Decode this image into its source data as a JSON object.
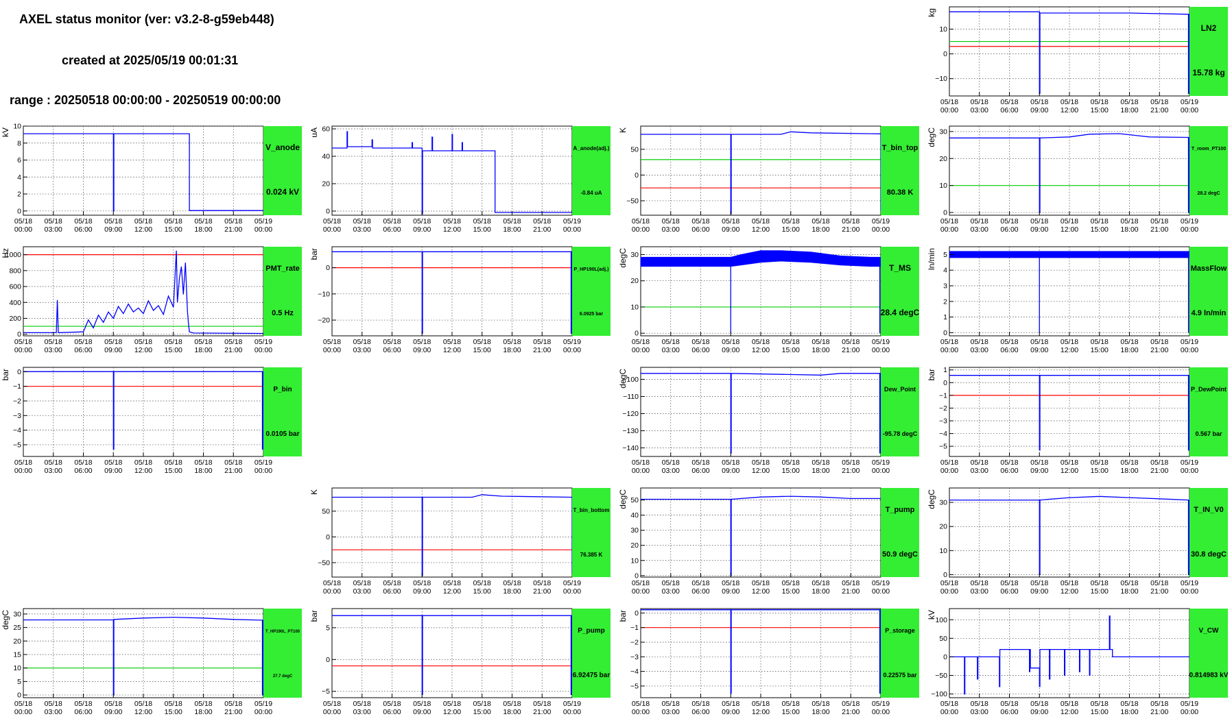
{
  "header": {
    "title": "AXEL status monitor (ver: v3.2-8-g59eb448)",
    "created": "created at 2025/05/19 00:01:31",
    "range": "range : 20250518 00:00:00 - 20250519 00:00:00"
  },
  "colors": {
    "data": "#0000ff",
    "upper_limit": "#ff0000",
    "lower_limit": "#00cc00",
    "panel": "#33ee33",
    "grid": "#444444"
  },
  "time_axis": {
    "labels": [
      [
        "05/18",
        "00:00"
      ],
      [
        "05/18",
        "03:00"
      ],
      [
        "05/18",
        "06:00"
      ],
      [
        "05/18",
        "09:00"
      ],
      [
        "05/18",
        "12:00"
      ],
      [
        "05/18",
        "15:00"
      ],
      [
        "05/18",
        "18:00"
      ],
      [
        "05/18",
        "21:00"
      ],
      [
        "05/19",
        "00:00"
      ]
    ],
    "hours": [
      0,
      3,
      6,
      9,
      12,
      15,
      18,
      21,
      24
    ]
  },
  "chart_data": [
    {
      "id": "LN2",
      "type": "line",
      "title": "LN2",
      "value_label": "15.78 kg",
      "ylabel": "kg",
      "ylim": [
        -17,
        19
      ],
      "yticks": [
        -10,
        0,
        10
      ],
      "hlines": [
        {
          "y": 5,
          "color": "green"
        },
        {
          "y": 3,
          "color": "red"
        }
      ],
      "series": [
        {
          "x": [
            0,
            9,
            9,
            9.05,
            9.05,
            18,
            23.9,
            23.9,
            23.95,
            23.95,
            24
          ],
          "y": [
            17,
            17,
            -16,
            -16,
            16.5,
            16.5,
            16,
            -16,
            -16,
            16,
            16
          ]
        }
      ]
    },
    {
      "id": "V_anode",
      "type": "line",
      "title": "V_anode",
      "value_label": "0.024 kV",
      "ylabel": "kV",
      "ylim": [
        -0.5,
        10
      ],
      "yticks": [
        0,
        2,
        4,
        6,
        8,
        10
      ],
      "hlines": [],
      "series": [
        {
          "x": [
            0,
            9,
            9,
            9.05,
            9.05,
            16.6,
            16.6,
            24
          ],
          "y": [
            9.1,
            9.1,
            0,
            0,
            9.1,
            9.1,
            0.05,
            0.05
          ]
        }
      ]
    },
    {
      "id": "A_anode",
      "type": "line",
      "title": "A_anode(adj.)",
      "value_label": "-0.84 uA",
      "ylabel": "uA",
      "ylim": [
        -3,
        62
      ],
      "yticks": [
        0,
        20,
        40,
        60
      ],
      "hlines": [],
      "series": [
        {
          "x": [
            0,
            1.5,
            1.5,
            1.55,
            1.55,
            4,
            4,
            4.05,
            4.05,
            8,
            8,
            8.05,
            8.05,
            9,
            9,
            9.05,
            9.05,
            10,
            10,
            10.05,
            10.05,
            12,
            12,
            12.05,
            12.05,
            13,
            13,
            13.05,
            13.05,
            16.3,
            16.3,
            24
          ],
          "y": [
            46,
            46,
            58,
            58,
            47,
            47,
            52,
            52,
            46,
            46,
            50,
            50,
            46,
            46,
            -2,
            -2,
            44,
            44,
            54,
            54,
            44,
            44,
            56,
            56,
            44,
            44,
            50,
            50,
            44,
            44,
            -1,
            -1
          ]
        }
      ]
    },
    {
      "id": "T_bin_top",
      "type": "line",
      "title": "T_bin_top",
      "value_label": "80.38 K",
      "ylabel": "K",
      "ylim": [
        -78,
        95
      ],
      "yticks": [
        -50,
        0,
        50
      ],
      "hlines": [
        {
          "y": 30,
          "color": "green"
        },
        {
          "y": -25,
          "color": "red"
        }
      ],
      "series": [
        {
          "x": [
            0,
            9,
            9,
            9.05,
            9.05,
            14,
            15,
            17,
            24,
            24,
            24
          ],
          "y": [
            79,
            79,
            -75,
            -75,
            79,
            79,
            84,
            82,
            80,
            -70,
            80
          ]
        }
      ]
    },
    {
      "id": "T_room_PT100",
      "type": "line",
      "title": "T_room_PT100",
      "value_label": "28.2 degC",
      "ylabel": "degC",
      "ylim": [
        -1,
        32
      ],
      "yticks": [
        0,
        10,
        20,
        30
      ],
      "hlines": [
        {
          "y": 10,
          "color": "green"
        }
      ],
      "series": [
        {
          "x": [
            0,
            9,
            9,
            9.05,
            9.05,
            12,
            14,
            17,
            20,
            23.9,
            23.9,
            23.95,
            23.95,
            24
          ],
          "y": [
            27.6,
            27.6,
            0,
            0,
            27.6,
            28,
            29,
            29.2,
            28,
            27.8,
            0,
            0,
            27.8,
            27.8
          ]
        }
      ]
    },
    {
      "id": "PMT_rate",
      "type": "line",
      "title": "PMT_rate",
      "value_label": "0.5 Hz",
      "ylabel": "Hz",
      "ylim": [
        -20,
        1100
      ],
      "yticks": [
        0,
        200,
        400,
        600,
        800,
        1000
      ],
      "hlines": [
        {
          "y": 1000,
          "color": "red"
        },
        {
          "y": 100,
          "color": "green"
        }
      ],
      "series": [
        {
          "x": [
            0,
            3.3,
            3.4,
            3.5,
            6,
            6.5,
            7,
            7.5,
            8,
            8.5,
            9,
            9.5,
            10,
            10.5,
            11,
            11.5,
            12,
            12.5,
            13,
            13.5,
            14,
            14.5,
            15,
            15.3,
            15.4,
            15.6,
            15.8,
            16,
            16.2,
            16.4,
            16.5,
            16.6,
            17,
            24
          ],
          "y": [
            20,
            20,
            430,
            20,
            30,
            180,
            80,
            240,
            150,
            280,
            200,
            350,
            260,
            380,
            280,
            330,
            260,
            420,
            300,
            360,
            250,
            480,
            340,
            1050,
            400,
            700,
            850,
            500,
            900,
            300,
            150,
            30,
            15,
            10
          ]
        }
      ]
    },
    {
      "id": "P_HP190L",
      "type": "line",
      "title": "P_HP190L(adj.)",
      "value_label": "6.0925 bar",
      "ylabel": "bar",
      "ylim": [
        -26,
        8
      ],
      "yticks": [
        -20,
        -10,
        0
      ],
      "hlines": [
        {
          "y": 0,
          "color": "red"
        }
      ],
      "series": [
        {
          "x": [
            0,
            9,
            9,
            9.05,
            9.05,
            23.9,
            23.9,
            23.95,
            23.95,
            24
          ],
          "y": [
            6.1,
            6.1,
            -25,
            -25,
            6.1,
            6.1,
            -25,
            -25,
            6.1,
            6.1
          ]
        }
      ]
    },
    {
      "id": "T_MS",
      "type": "area",
      "title": "T_MS",
      "value_label": "28.4 degC",
      "ylabel": "degC",
      "ylim": [
        -1,
        33
      ],
      "yticks": [
        0,
        10,
        20,
        30
      ],
      "hlines": [
        {
          "y": 10,
          "color": "green"
        }
      ],
      "series": [
        {
          "x": [
            0,
            9,
            10,
            12,
            14,
            17,
            20,
            23,
            24
          ],
          "y_high": [
            29,
            29,
            30,
            31.5,
            31.5,
            31,
            29.5,
            29,
            29
          ],
          "y_low": [
            25.5,
            25.5,
            26,
            27,
            27.5,
            27,
            26,
            25.5,
            25.5
          ]
        }
      ],
      "spikes": [
        {
          "x": 9,
          "y": 0
        },
        {
          "x": 23.9,
          "y": 0
        }
      ]
    },
    {
      "id": "MassFlow",
      "type": "area",
      "title": "MassFlow",
      "value_label": "4.9 ln/min",
      "ylabel": "ln/min",
      "ylim": [
        -0.2,
        5.5
      ],
      "yticks": [
        0,
        1,
        2,
        3,
        4,
        5
      ],
      "hlines": [],
      "series": [
        {
          "x": [
            0,
            24
          ],
          "y_high": [
            5.2,
            5.2
          ],
          "y_low": [
            4.8,
            4.8
          ]
        }
      ],
      "spikes": [
        {
          "x": 9,
          "y": 0
        },
        {
          "x": 23.9,
          "y": 0
        }
      ]
    },
    {
      "id": "P_bin",
      "type": "line",
      "title": "P_bin",
      "value_label": "0.0105 bar",
      "ylabel": "bar",
      "ylim": [
        -5.8,
        0.3
      ],
      "yticks": [
        -5,
        -4,
        -3,
        -2,
        -1,
        0
      ],
      "hlines": [
        {
          "y": -1,
          "color": "red"
        }
      ],
      "series": [
        {
          "x": [
            0,
            9,
            9,
            9.05,
            9.05,
            23.9,
            23.9,
            23.95,
            23.95,
            24
          ],
          "y": [
            0.01,
            0.01,
            -5.3,
            -5.3,
            0.01,
            0.01,
            -5.3,
            -5.3,
            0.01,
            0.01
          ]
        }
      ]
    },
    {
      "id": "Dew_Point",
      "type": "line",
      "title": "Dew_Point",
      "value_label": "-95.78 degC",
      "ylabel": "degC",
      "ylim": [
        -145,
        -93
      ],
      "yticks": [
        -140,
        -130,
        -120,
        -110,
        -100
      ],
      "hlines": [],
      "series": [
        {
          "x": [
            0,
            9,
            9,
            9.05,
            9.05,
            18,
            20,
            23.9,
            23.9,
            23.95,
            23.95,
            24
          ],
          "y": [
            -96.5,
            -96.5,
            -143,
            -143,
            -96.5,
            -97.5,
            -96.5,
            -96.5,
            -143,
            -143,
            -96.5,
            -96.5
          ]
        }
      ]
    },
    {
      "id": "P_DewPoint",
      "type": "line",
      "title": "P_DewPoint",
      "value_label": "0.567 bar",
      "ylabel": "bar",
      "ylim": [
        -5.8,
        1.2
      ],
      "yticks": [
        -5,
        -4,
        -3,
        -2,
        -1,
        0,
        1
      ],
      "hlines": [
        {
          "y": -1,
          "color": "red"
        }
      ],
      "series": [
        {
          "x": [
            0,
            9,
            9,
            9.05,
            9.05,
            23.9,
            23.9,
            23.95,
            23.95,
            24
          ],
          "y": [
            0.57,
            0.57,
            -5.3,
            -5.3,
            0.57,
            0.57,
            -5.3,
            -5.3,
            0.57,
            0.57
          ]
        }
      ]
    },
    {
      "id": "T_bin_bottom",
      "type": "line",
      "title": "T_bin_bottom",
      "value_label": "76.385 K",
      "ylabel": "K",
      "ylim": [
        -78,
        95
      ],
      "yticks": [
        -50,
        0,
        50
      ],
      "hlines": [
        {
          "y": -25,
          "color": "red"
        }
      ],
      "series": [
        {
          "x": [
            0,
            9,
            9,
            9.05,
            9.05,
            14,
            15,
            17,
            24,
            24,
            24
          ],
          "y": [
            77,
            77,
            -75,
            -75,
            77,
            77,
            82,
            79,
            77,
            -70,
            77
          ]
        }
      ]
    },
    {
      "id": "T_pump",
      "type": "line",
      "title": "T_pump",
      "value_label": "50.9 degC",
      "ylabel": "degC",
      "ylim": [
        -1,
        58
      ],
      "yticks": [
        0,
        10,
        20,
        30,
        40,
        50
      ],
      "hlines": [],
      "series": [
        {
          "x": [
            0,
            9,
            9,
            9.05,
            9.05,
            12,
            15,
            18,
            21,
            24
          ],
          "y": [
            50.5,
            50.5,
            0,
            0,
            50.5,
            52,
            52.5,
            52,
            51,
            51
          ]
        }
      ]
    },
    {
      "id": "T_IN_V0",
      "type": "line",
      "title": "T_IN_V0",
      "value_label": "30.8 degC",
      "ylabel": "degC",
      "ylim": [
        -1,
        36
      ],
      "yticks": [
        0,
        10,
        20,
        30
      ],
      "hlines": [],
      "series": [
        {
          "x": [
            0,
            9,
            9,
            9.05,
            9.05,
            12,
            15,
            18,
            21,
            23.9,
            23.9,
            23.95,
            23.95,
            24
          ],
          "y": [
            31,
            31,
            0,
            0,
            31,
            32,
            32.5,
            32,
            31.5,
            31,
            0,
            0,
            31,
            31
          ]
        }
      ]
    },
    {
      "id": "T_HP190L_PT100",
      "type": "line",
      "title": "T_HP190L_PT100",
      "value_label": "27.7 degC",
      "ylabel": "degC",
      "ylim": [
        -1,
        32
      ],
      "yticks": [
        0,
        5,
        10,
        15,
        20,
        25,
        30
      ],
      "hlines": [
        {
          "y": 10,
          "color": "green"
        }
      ],
      "series": [
        {
          "x": [
            0,
            9,
            9,
            9.05,
            9.05,
            12,
            15,
            18,
            21,
            23.9,
            23.9,
            23.95,
            23.95,
            24
          ],
          "y": [
            27.8,
            27.8,
            0,
            0,
            28,
            28.5,
            28.8,
            28.5,
            28,
            27.7,
            0,
            0,
            27.7,
            27.7
          ]
        }
      ]
    },
    {
      "id": "P_pump",
      "type": "line",
      "title": "P_pump",
      "value_label": "6.92475 bar",
      "ylabel": "bar",
      "ylim": [
        -6,
        8
      ],
      "yticks": [
        -5,
        0,
        5
      ],
      "hlines": [
        {
          "y": -1,
          "color": "red"
        }
      ],
      "series": [
        {
          "x": [
            0,
            9,
            9,
            9.05,
            9.05,
            23.9,
            23.9,
            23.95,
            23.95,
            24
          ],
          "y": [
            6.9,
            6.9,
            -5.5,
            -5.5,
            6.9,
            6.9,
            -5.5,
            -5.5,
            6.9,
            6.9
          ]
        }
      ]
    },
    {
      "id": "P_storage",
      "type": "line",
      "title": "P_storage",
      "value_label": "0.22575 bar",
      "ylabel": "bar",
      "ylim": [
        -5.8,
        0.3
      ],
      "yticks": [
        -5,
        -4,
        -3,
        -2,
        -1,
        0
      ],
      "hlines": [
        {
          "y": -1,
          "color": "red"
        }
      ],
      "series": [
        {
          "x": [
            0,
            9,
            9,
            9.05,
            9.05,
            23.9,
            23.9,
            23.95,
            23.95,
            24
          ],
          "y": [
            0.22,
            0.22,
            -5.5,
            -5.5,
            0.22,
            0.22,
            -5.5,
            -5.5,
            0.22,
            0.22
          ]
        }
      ]
    },
    {
      "id": "V_CW",
      "type": "line",
      "title": "V_CW",
      "value_label": "0.814983 kV",
      "ylabel": "kV",
      "ylim": [
        -110,
        130
      ],
      "yticks": [
        -100,
        -50,
        0,
        50,
        100
      ],
      "hlines": [],
      "series": [
        {
          "x": [
            0,
            1.5,
            1.5,
            1.55,
            1.55,
            2.8,
            2.8,
            2.85,
            2.85,
            5,
            5,
            5.05,
            5.05,
            8,
            8,
            8.05,
            8.05,
            8.1,
            8.1,
            9,
            9,
            9.05,
            9.05,
            10,
            10,
            10.05,
            10.05,
            11.5,
            11.5,
            11.55,
            11.55,
            13,
            13,
            13.05,
            13.05,
            14,
            14,
            14.05,
            14.05,
            16,
            16,
            16.05,
            16.05,
            16.3,
            16.3,
            24
          ],
          "y": [
            0,
            0,
            -100,
            -100,
            0,
            0,
            -60,
            -60,
            0,
            0,
            -80,
            -80,
            20,
            20,
            -40,
            -40,
            20,
            20,
            -30,
            -30,
            -80,
            -80,
            20,
            20,
            -60,
            -60,
            20,
            20,
            -50,
            -50,
            20,
            20,
            -40,
            -40,
            20,
            20,
            -50,
            -50,
            20,
            20,
            110,
            110,
            20,
            20,
            0,
            0
          ]
        }
      ]
    }
  ]
}
